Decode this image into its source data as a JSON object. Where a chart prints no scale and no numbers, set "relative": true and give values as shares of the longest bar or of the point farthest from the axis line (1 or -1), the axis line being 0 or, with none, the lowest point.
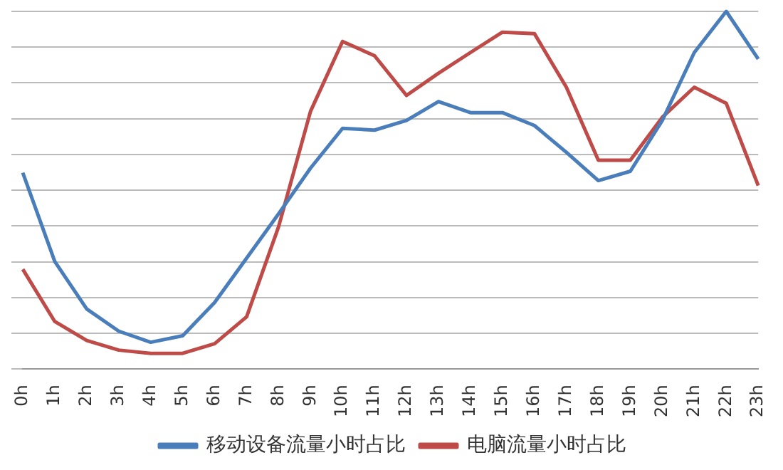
{
  "chart_data": {
    "type": "line",
    "relative": true,
    "grid": "y",
    "legend": "bottom",
    "marker": "none",
    "line_style": "solid",
    "categories": [
      "0h",
      "1h",
      "2h",
      "3h",
      "4h",
      "5h",
      "6h",
      "7h",
      "8h",
      "9h",
      "10h",
      "11h",
      "12h",
      "13h",
      "14h",
      "15h",
      "16h",
      "17h",
      "18h",
      "19h",
      "20h",
      "21h",
      "22h",
      "23h"
    ],
    "series": [
      {
        "name": "移动设备流量小时占比",
        "color": "#4a7ebb",
        "values": [
          0.549,
          0.301,
          0.168,
          0.106,
          0.075,
          0.093,
          0.186,
          0.31,
          0.434,
          0.562,
          0.673,
          0.668,
          0.695,
          0.748,
          0.717,
          0.717,
          0.681,
          0.606,
          0.527,
          0.553,
          0.695,
          0.885,
          1,
          0.867
        ]
      },
      {
        "name": "电脑流量小时占比",
        "color": "#be4b48",
        "values": [
          0.279,
          0.133,
          0.08,
          0.053,
          0.044,
          0.044,
          0.071,
          0.146,
          0.398,
          0.721,
          0.916,
          0.876,
          0.765,
          0.827,
          0.885,
          0.942,
          0.938,
          0.788,
          0.584,
          0.584,
          0.704,
          0.788,
          0.743,
          0.513
        ]
      }
    ]
  }
}
